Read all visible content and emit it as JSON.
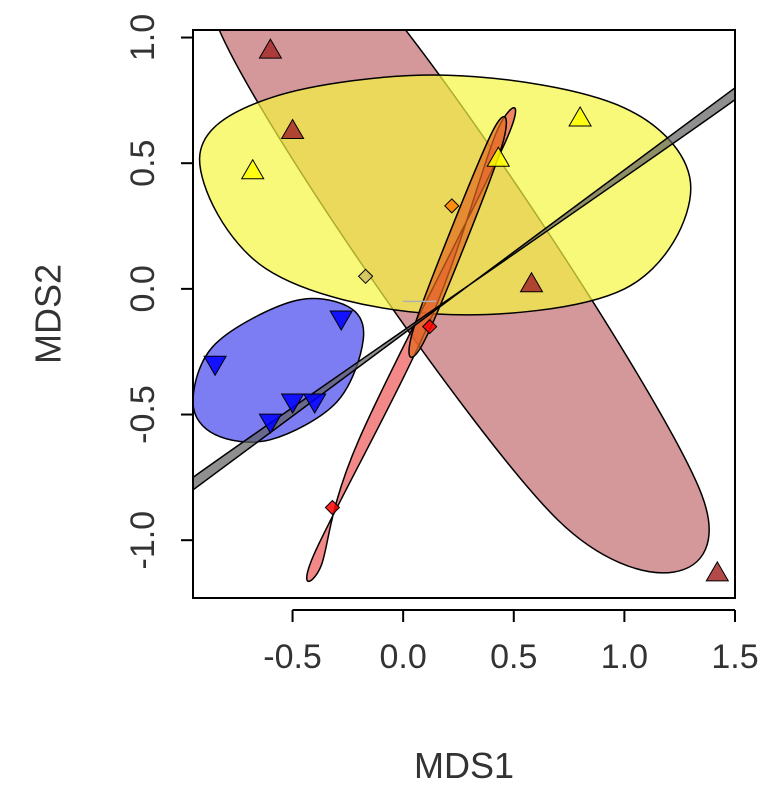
{
  "chart_data": {
    "type": "scatter",
    "title": "",
    "xlabel": "MDS1",
    "ylabel": "MDS2",
    "xlim": [
      -0.95,
      1.5
    ],
    "ylim": [
      -1.23,
      1.03
    ],
    "xticks": [
      -0.5,
      0.0,
      0.5,
      1.0,
      1.5
    ],
    "xtick_labels": [
      "-0.5",
      "0.0",
      "0.5",
      "1.0",
      "1.5"
    ],
    "yticks": [
      -1.0,
      -0.5,
      0.0,
      0.5,
      1.0
    ],
    "ytick_labels": [
      "-1.0",
      "-0.5",
      "0.0",
      "0.5",
      "1.0"
    ],
    "grid": false,
    "legend": "none",
    "ellipses": [
      {
        "color": "#c26b6f",
        "points": [
          [
            0.7,
            -0.92
          ],
          [
            -0.85,
            1.07
          ],
          [
            -0.25,
            1.3
          ],
          [
            1.35,
            -0.82
          ]
        ]
      },
      {
        "color": "#f5f540",
        "points": [
          [
            -0.92,
            0.52
          ],
          [
            -0.62,
            0.08
          ],
          [
            0.15,
            -0.1
          ],
          [
            1.0,
            0.0
          ],
          [
            1.3,
            0.4
          ],
          [
            1.0,
            0.72
          ],
          [
            0.2,
            0.85
          ],
          [
            -0.6,
            0.76
          ]
        ]
      },
      {
        "color": "#ee5555",
        "points": [
          [
            -0.37,
            -1.1
          ],
          [
            -0.4,
            -1.05
          ],
          [
            0.12,
            -0.13
          ],
          [
            0.42,
            0.62
          ],
          [
            0.46,
            0.58
          ],
          [
            -0.2,
            -0.6
          ]
        ]
      },
      {
        "color": "#e36a20",
        "points": [
          [
            0.05,
            -0.15
          ],
          [
            0.4,
            0.62
          ],
          [
            0.44,
            0.55
          ],
          [
            0.1,
            -0.2
          ]
        ]
      },
      {
        "color": "#4444ee",
        "points": [
          [
            -0.95,
            -0.45
          ],
          [
            -0.85,
            -0.22
          ],
          [
            -0.5,
            -0.05
          ],
          [
            -0.25,
            -0.07
          ],
          [
            -0.18,
            -0.2
          ],
          [
            -0.3,
            -0.45
          ],
          [
            -0.6,
            -0.6
          ],
          [
            -0.85,
            -0.58
          ]
        ]
      },
      {
        "color": "#606060",
        "points": [
          [
            -0.95,
            -0.8
          ],
          [
            1.5,
            0.8
          ],
          [
            1.48,
            0.74
          ],
          [
            -0.95,
            -0.75
          ]
        ]
      }
    ],
    "arms": [
      {
        "from": [
          0.0,
          -0.05
        ],
        "to": [
          0.15,
          -0.05
        ],
        "color": "#b0b0b0"
      }
    ],
    "series": [
      {
        "color": "#a52a2a",
        "marker": "triangle-up",
        "x": [
          -0.6,
          -0.5,
          0.58,
          1.42
        ],
        "y": [
          0.95,
          0.63,
          0.02,
          -1.13
        ]
      },
      {
        "color": "#ffff00",
        "marker": "triangle-up",
        "x": [
          -0.68,
          0.43,
          0.8
        ],
        "y": [
          0.47,
          0.52,
          0.68
        ]
      },
      {
        "color": "#ff0000",
        "marker": "diamond",
        "x": [
          -0.32,
          0.12
        ],
        "y": [
          -0.87,
          -0.15
        ]
      },
      {
        "color": "#ff7f00",
        "marker": "diamond",
        "x": [
          0.22
        ],
        "y": [
          0.33
        ]
      },
      {
        "color": "#d0c060",
        "marker": "diamond",
        "x": [
          -0.17
        ],
        "y": [
          0.05
        ]
      },
      {
        "color": "#0000ff",
        "marker": "triangle-down",
        "x": [
          -0.85,
          -0.6,
          -0.5,
          -0.4,
          -0.28
        ],
        "y": [
          -0.3,
          -0.53,
          -0.45,
          -0.45,
          -0.12
        ]
      }
    ]
  }
}
